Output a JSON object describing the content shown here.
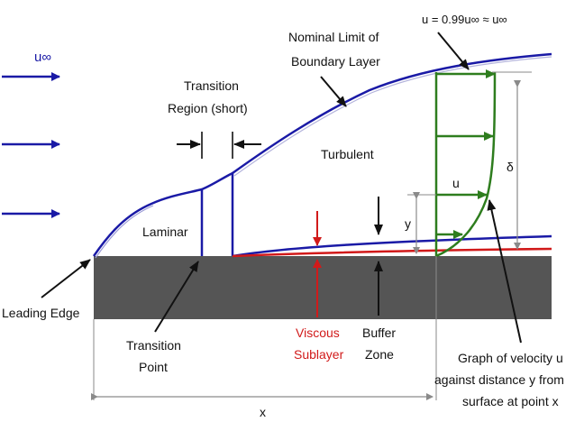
{
  "labels": {
    "u_inf": "u∞",
    "edge_velocity": "u = 0.99u∞ ≈ u∞",
    "nominal_limit_1": "Nominal Limit of",
    "nominal_limit_2": "Boundary Layer",
    "transition_region_1": "Transition",
    "transition_region_2": "Region (short)",
    "turbulent": "Turbulent",
    "laminar": "Laminar",
    "delta": "δ",
    "u": "u",
    "y": "y",
    "leading_edge": "Leading Edge",
    "transition_point_1": "Transition",
    "transition_point_2": "Point",
    "viscous_1": "Viscous",
    "viscous_2": "Sublayer",
    "buffer_1": "Buffer",
    "buffer_2": "Zone",
    "graph_1": "Graph of velocity u",
    "graph_2": "against distance y from",
    "graph_3": "surface at point x",
    "x": "x"
  },
  "colors": {
    "blue": "#1a1aa6",
    "green": "#2e7d1e",
    "red": "#d11a1a",
    "plate": "#555555",
    "black": "#111111",
    "grey": "#8a8a8a"
  }
}
